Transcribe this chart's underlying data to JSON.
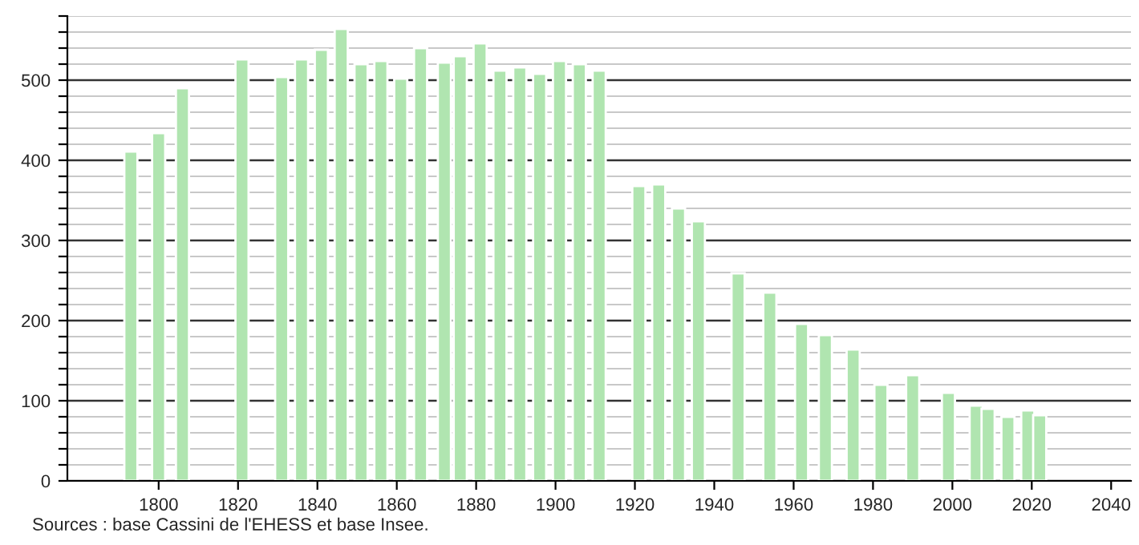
{
  "chart_data": {
    "type": "bar",
    "color": "#b0e5b0",
    "x": [
      1793,
      1800,
      1806,
      1821,
      1831,
      1836,
      1841,
      1846,
      1851,
      1856,
      1861,
      1866,
      1872,
      1876,
      1881,
      1886,
      1891,
      1896,
      1901,
      1906,
      1911,
      1921,
      1926,
      1931,
      1936,
      1946,
      1954,
      1962,
      1968,
      1975,
      1982,
      1990,
      1999,
      2006,
      2009,
      2014,
      2019,
      2022
    ],
    "values": [
      411,
      434,
      490,
      526,
      504,
      526,
      538,
      564,
      520,
      524,
      502,
      540,
      522,
      530,
      546,
      512,
      516,
      508,
      524,
      520,
      512,
      368,
      370,
      340,
      324,
      259,
      235,
      196,
      182,
      164,
      120,
      132,
      110,
      94,
      90,
      80,
      88,
      82
    ],
    "xlim": [
      1777,
      2045
    ],
    "xticks": [
      1800,
      1820,
      1840,
      1860,
      1880,
      1900,
      1920,
      1940,
      1960,
      1980,
      2000,
      2020,
      2040
    ],
    "ylim": [
      0,
      580
    ],
    "yticks": [
      0,
      {
        "value": 20,
        "label": null
      },
      {
        "value": 40,
        "label": null
      },
      {
        "value": 60,
        "label": null
      },
      {
        "value": 80,
        "label": null
      },
      100,
      {
        "value": 120,
        "label": null
      },
      {
        "value": 140,
        "label": null
      },
      {
        "value": 160,
        "label": null
      },
      {
        "value": 180,
        "label": null
      },
      200,
      {
        "value": 220,
        "label": null
      },
      {
        "value": 240,
        "label": null
      },
      {
        "value": 260,
        "label": null
      },
      {
        "value": 280,
        "label": null
      },
      300,
      {
        "value": 320,
        "label": null
      },
      {
        "value": 340,
        "label": null
      },
      {
        "value": 360,
        "label": null
      },
      {
        "value": 380,
        "label": null
      },
      400,
      {
        "value": 420,
        "label": null
      },
      {
        "value": 440,
        "label": null
      },
      {
        "value": 460,
        "label": null
      },
      {
        "value": 480,
        "label": null
      },
      500,
      {
        "value": 520,
        "label": null
      },
      {
        "value": 540,
        "label": null
      },
      {
        "value": 560,
        "label": null
      },
      {
        "value": 580,
        "label": null
      }
    ],
    "grid": "y",
    "annotations": [
      "Sources : base Cassini de l'EHESS et base Insee."
    ]
  }
}
